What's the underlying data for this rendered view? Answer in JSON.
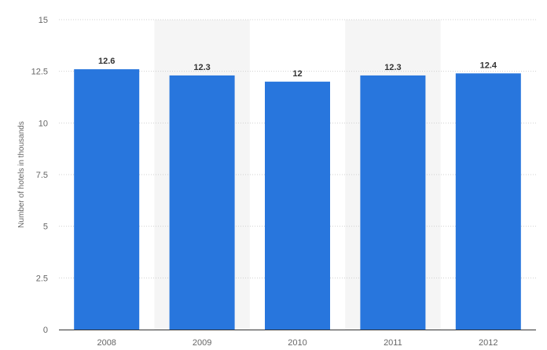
{
  "chart_data": {
    "type": "bar",
    "categories": [
      "2008",
      "2009",
      "2010",
      "2011",
      "2012"
    ],
    "values": [
      12.6,
      12.3,
      12,
      12.3,
      12.4
    ],
    "data_labels": [
      "12.6",
      "12.3",
      "12",
      "12.3",
      "12.4"
    ],
    "title": "",
    "xlabel": "",
    "ylabel": "Number of hotels in thousands",
    "ylim": [
      0,
      15
    ],
    "yticks": [
      0,
      2.5,
      5,
      7.5,
      10,
      12.5,
      15
    ],
    "ytick_labels": [
      "0",
      "2.5",
      "5",
      "7.5",
      "10",
      "12.5",
      "15"
    ],
    "grid": true,
    "bar_color": "#2876dd"
  }
}
